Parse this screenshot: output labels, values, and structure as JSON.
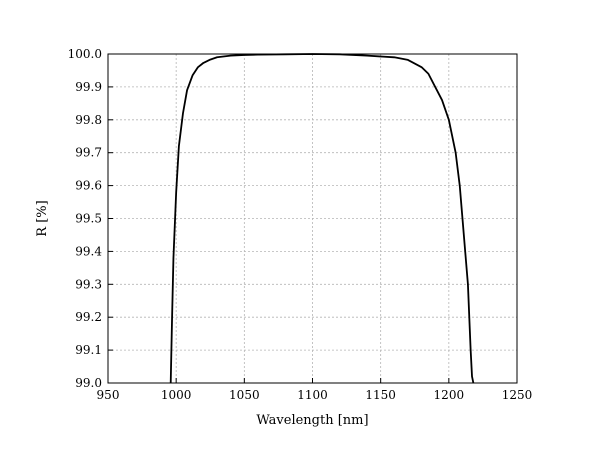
{
  "chart_data": {
    "type": "line",
    "title": "",
    "xlabel": "Wavelength [nm]",
    "ylabel": "R [%]",
    "xlim": [
      950,
      1250
    ],
    "ylim": [
      99.0,
      100.0
    ],
    "xticks": [
      950,
      1000,
      1050,
      1100,
      1150,
      1200,
      1250
    ],
    "yticks": [
      99.0,
      99.1,
      99.2,
      99.3,
      99.4,
      99.5,
      99.6,
      99.7,
      99.8,
      99.9,
      100.0
    ],
    "xtick_labels": [
      "950",
      "1000",
      "1050",
      "1100",
      "1150",
      "1200",
      "1250"
    ],
    "ytick_labels": [
      "99.0",
      "99.1",
      "99.2",
      "99.3",
      "99.4",
      "99.5",
      "99.6",
      "99.7",
      "99.8",
      "99.9",
      "100.0"
    ],
    "grid": true,
    "legend": "none",
    "series": [
      {
        "color": "#000000",
        "x": [
          996,
          997,
          998,
          1000,
          1002,
          1005,
          1008,
          1012,
          1016,
          1020,
          1025,
          1030,
          1040,
          1050,
          1060,
          1080,
          1100,
          1120,
          1140,
          1160,
          1170,
          1180,
          1185,
          1190,
          1195,
          1200,
          1205,
          1208,
          1210,
          1212,
          1214,
          1215,
          1216,
          1217,
          1218
        ],
        "y": [
          99.0,
          99.2,
          99.38,
          99.58,
          99.72,
          99.82,
          99.89,
          99.935,
          99.96,
          99.973,
          99.983,
          99.99,
          99.995,
          99.997,
          99.998,
          99.999,
          100.0,
          99.999,
          99.995,
          99.99,
          99.982,
          99.96,
          99.94,
          99.9,
          99.86,
          99.8,
          99.7,
          99.6,
          99.5,
          99.4,
          99.3,
          99.2,
          99.1,
          99.02,
          99.0
        ]
      }
    ]
  }
}
